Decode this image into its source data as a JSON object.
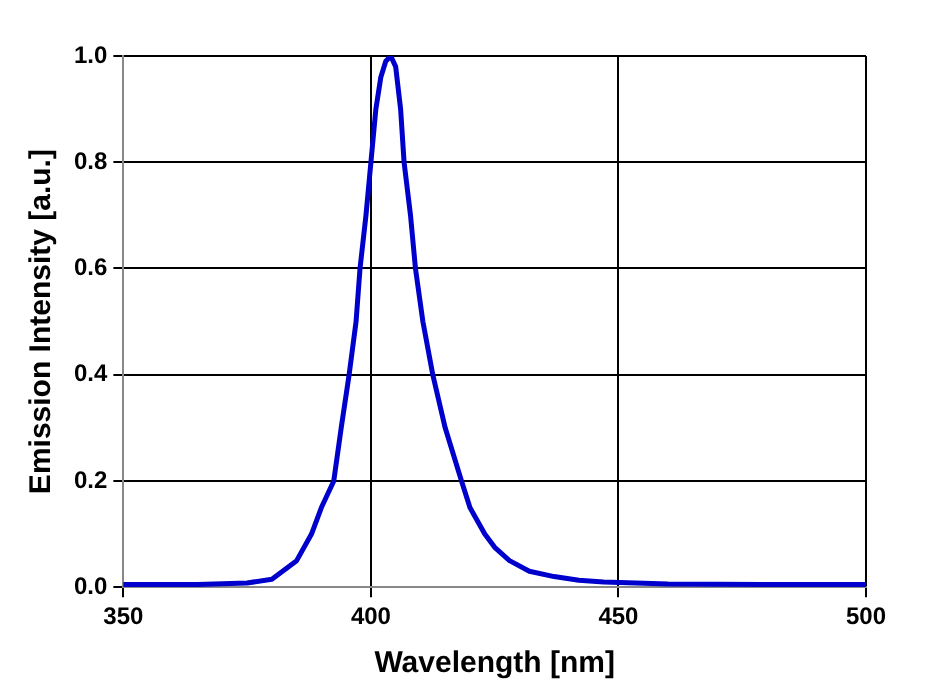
{
  "chart_data": {
    "type": "line",
    "xlabel": "Wavelength [nm]",
    "ylabel": "Emission Intensity [a.u.]",
    "xlim": [
      350,
      500
    ],
    "xticks": [
      350,
      400,
      450,
      500
    ],
    "ylim": [
      0,
      1
    ],
    "yticks": [
      {
        "value": 0,
        "label": "0.0"
      },
      0.2,
      0.4,
      0.6,
      0.8,
      {
        "value": 1,
        "label": "1.0"
      }
    ],
    "grid": true,
    "marker": "none",
    "line_style": "solid",
    "legend": false,
    "series": [
      {
        "color": "#0000cc",
        "x": [
          350,
          365,
          375,
          380,
          385,
          388,
          390,
          392.5,
          394,
          395.6,
          397,
          397.8,
          399,
          400,
          401,
          402,
          403,
          404,
          405,
          406,
          406.7,
          408,
          409,
          410.5,
          412.5,
          415,
          418.3,
          420,
          423,
          425,
          428,
          432,
          437,
          442,
          447,
          460,
          480,
          500
        ],
        "values": [
          0.005,
          0.005,
          0.008,
          0.015,
          0.05,
          0.1,
          0.15,
          0.2,
          0.3,
          0.4,
          0.5,
          0.6,
          0.7,
          0.8,
          0.9,
          0.96,
          0.99,
          1.0,
          0.98,
          0.9,
          0.8,
          0.7,
          0.6,
          0.5,
          0.4,
          0.3,
          0.2,
          0.15,
          0.1,
          0.075,
          0.05,
          0.03,
          0.02,
          0.013,
          0.01,
          0.006,
          0.005,
          0.005
        ]
      }
    ]
  }
}
